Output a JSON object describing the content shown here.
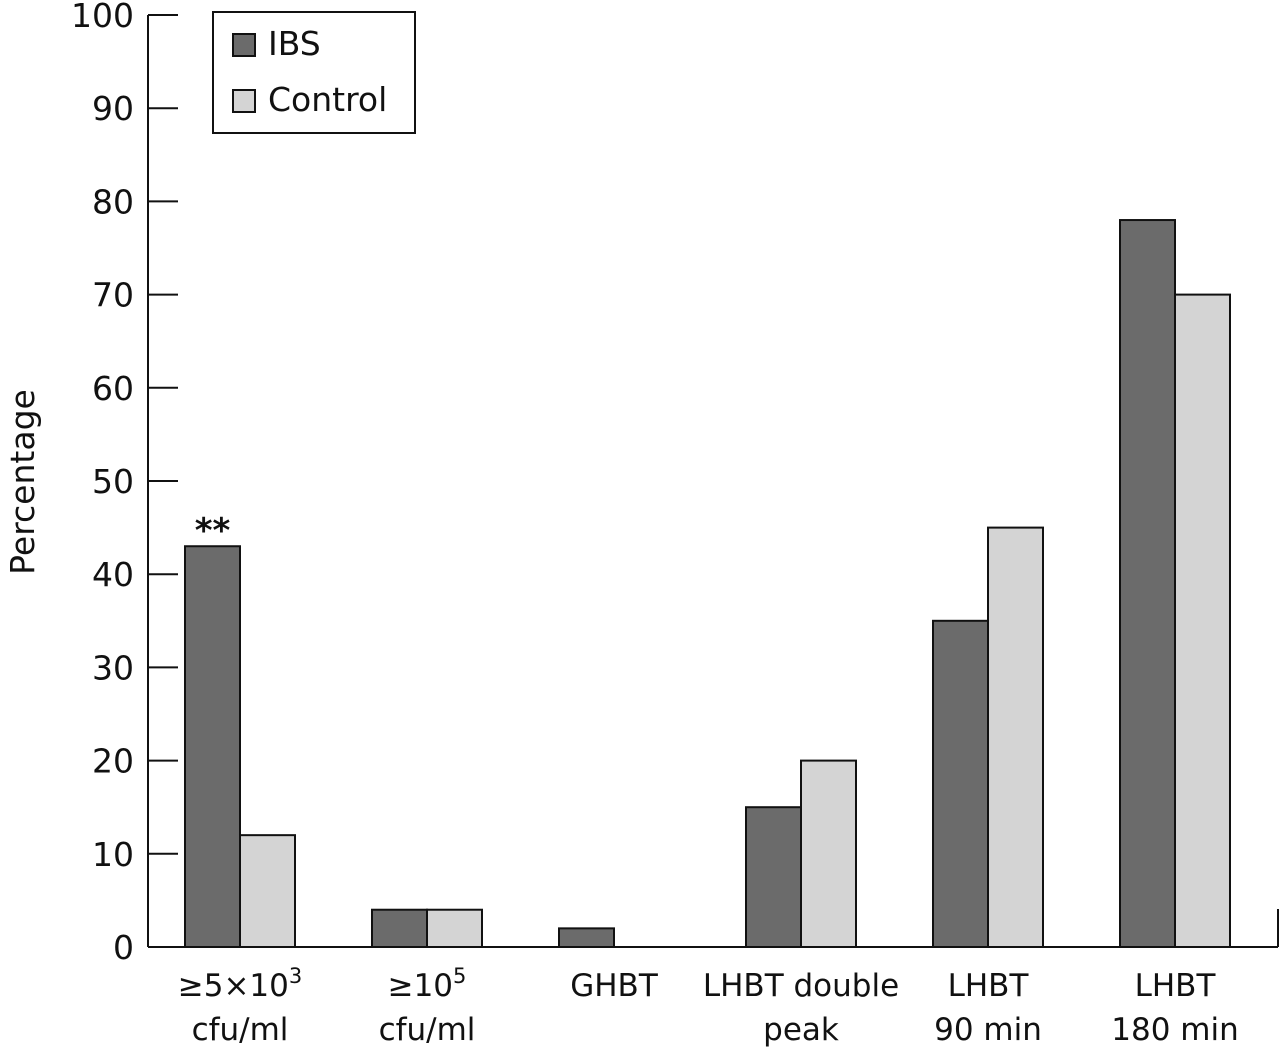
{
  "chart_data": {
    "type": "bar",
    "title": "",
    "xlabel": "",
    "ylabel": "Percentage",
    "ylim": [
      0,
      100
    ],
    "yticks": [
      0,
      10,
      20,
      30,
      40,
      50,
      60,
      70,
      80,
      90,
      100
    ],
    "categories": [
      {
        "lines": [
          [
            {
              "t": "≥5×10"
            },
            {
              "t": "3",
              "sup": true
            }
          ],
          [
            {
              "t": "cfu/ml"
            }
          ]
        ]
      },
      {
        "lines": [
          [
            {
              "t": "≥10"
            },
            {
              "t": "5",
              "sup": true
            }
          ],
          [
            {
              "t": "cfu/ml"
            }
          ]
        ]
      },
      {
        "lines": [
          [
            {
              "t": "GHBT"
            }
          ]
        ]
      },
      {
        "lines": [
          [
            {
              "t": "LHBT double"
            }
          ],
          [
            {
              "t": "peak"
            }
          ]
        ]
      },
      {
        "lines": [
          [
            {
              "t": "LHBT"
            }
          ],
          [
            {
              "t": "90 min"
            }
          ]
        ]
      },
      {
        "lines": [
          [
            {
              "t": "LHBT"
            }
          ],
          [
            {
              "t": "180 min"
            }
          ]
        ]
      }
    ],
    "series": [
      {
        "name": "IBS",
        "color": "#6b6b6b",
        "values": [
          43,
          4,
          2,
          15,
          35,
          78
        ]
      },
      {
        "name": "Control",
        "color": "#d4d4d4",
        "values": [
          12,
          4,
          0,
          20,
          45,
          70
        ]
      }
    ],
    "annotations": [
      {
        "text": "**",
        "category_index": 0,
        "series_index": 0
      }
    ],
    "legend_position": "top-left",
    "grid": false
  }
}
